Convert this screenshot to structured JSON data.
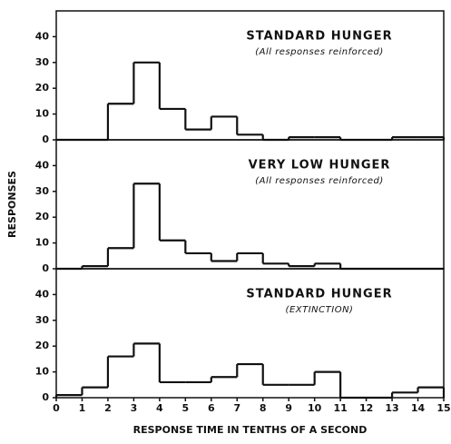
{
  "chart_data": [
    {
      "type": "histogram",
      "title": "STANDARD HUNGER",
      "subtitle": "(All responses reinforced)",
      "bins": [
        0,
        1,
        2,
        3,
        4,
        5,
        6,
        7,
        8,
        9,
        10,
        11,
        12,
        13,
        14,
        15
      ],
      "values": [
        0,
        0,
        14,
        30,
        12,
        4,
        9,
        2,
        0,
        1,
        1,
        0,
        0,
        1,
        1
      ],
      "xlim": [
        0,
        15
      ],
      "ylim": [
        0,
        50
      ],
      "yticks": [
        0,
        10,
        20,
        30,
        40
      ],
      "color": "#111111"
    },
    {
      "type": "histogram",
      "title": "VERY LOW HUNGER",
      "subtitle": "(All responses reinforced)",
      "ylabel": "RESPONSES",
      "bins": [
        0,
        1,
        2,
        3,
        4,
        5,
        6,
        7,
        8,
        9,
        10,
        11,
        12,
        13,
        14,
        15
      ],
      "values": [
        0,
        1,
        8,
        33,
        11,
        6,
        3,
        6,
        2,
        1,
        2,
        0,
        0,
        0,
        0
      ],
      "xlim": [
        0,
        15
      ],
      "ylim": [
        0,
        50
      ],
      "yticks": [
        0,
        10,
        20,
        30,
        40
      ],
      "color": "#111111"
    },
    {
      "type": "histogram",
      "title": "STANDARD HUNGER",
      "subtitle": "(EXTINCTION)",
      "xlabel": "RESPONSE TIME IN TENTHS OF A SECOND",
      "bins": [
        0,
        1,
        2,
        3,
        4,
        5,
        6,
        7,
        8,
        9,
        10,
        11,
        12,
        13,
        14,
        15
      ],
      "values": [
        1,
        4,
        16,
        21,
        6,
        6,
        8,
        13,
        5,
        5,
        10,
        0,
        0,
        2,
        4
      ],
      "xlim": [
        0,
        15
      ],
      "ylim": [
        0,
        50
      ],
      "yticks": [
        0,
        10,
        20,
        30,
        40
      ],
      "xticks": [
        0,
        1,
        2,
        3,
        4,
        5,
        6,
        7,
        8,
        9,
        10,
        11,
        12,
        13,
        14,
        15
      ],
      "color": "#111111"
    }
  ]
}
